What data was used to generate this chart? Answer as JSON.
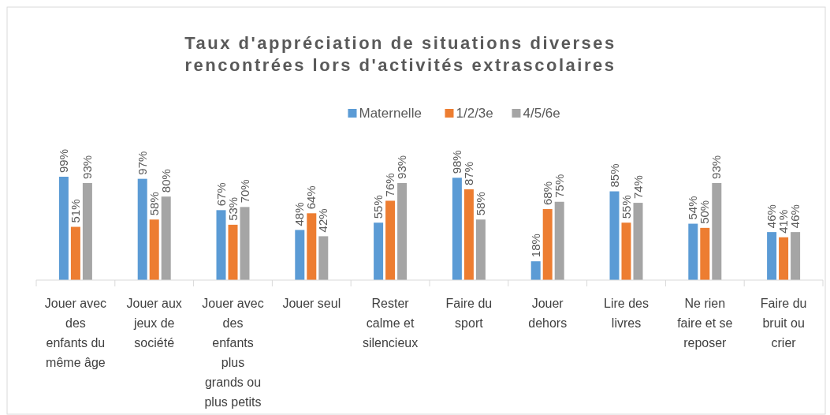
{
  "chart_data": {
    "type": "bar",
    "title": "Taux d'appréciation de situations diverses rencontrées lors d'activités extrascolaires",
    "categories": [
      "Jouer avec des enfants du même âge",
      "Jouer aux jeux de société",
      "Jouer avec des enfants plus grands ou plus petits",
      "Jouer seul",
      "Rester calme et silencieux",
      "Faire du sport",
      "Jouer dehors",
      "Lire des livres",
      "Ne rien faire et se reposer",
      "Faire du bruit ou crier"
    ],
    "series": [
      {
        "name": "Maternelle",
        "color": "#5b9bd5",
        "values": [
          99,
          97,
          67,
          48,
          55,
          98,
          18,
          85,
          54,
          46
        ],
        "value_labels": [
          "99%",
          "97%",
          "67%",
          "48%",
          "55%",
          "98%",
          "18%",
          "85%",
          "54%",
          "46%"
        ]
      },
      {
        "name": "1/2/3e",
        "color": "#ed7d31",
        "values": [
          51,
          58,
          53,
          64,
          76,
          87,
          68,
          55,
          50,
          41
        ],
        "value_labels": [
          "51%",
          "58%",
          "53%",
          "64%",
          "76%",
          "87%",
          "68%",
          "55%",
          "50%",
          "41%"
        ]
      },
      {
        "name": "4/5/6e",
        "color": "#a5a5a5",
        "values": [
          93,
          80,
          70,
          42,
          93,
          58,
          75,
          74,
          93,
          46
        ],
        "value_labels": [
          "93%",
          "80%",
          "70%",
          "42%",
          "93%",
          "58%",
          "75%",
          "74%",
          "93%",
          "46%"
        ]
      }
    ],
    "legend": "top"
  }
}
